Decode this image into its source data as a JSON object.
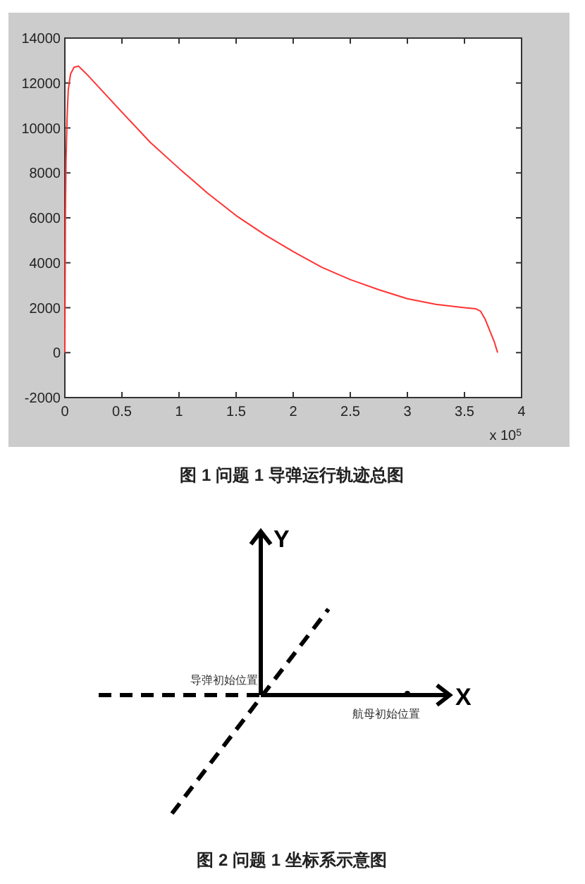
{
  "chart_data": [
    {
      "type": "line",
      "title": "图 1  问题 1 导弹运行轨迹总图",
      "annotations": [
        "x 10$^{5}$"
      ],
      "x": [
        0,
        0.005,
        0.01,
        0.02,
        0.03,
        0.05,
        0.08,
        0.12,
        0.16,
        0.2,
        0.3,
        0.5,
        0.75,
        1,
        1.25,
        1.5,
        1.75,
        2,
        2.25,
        2.5,
        2.75,
        3,
        3.25,
        3.5,
        3.6,
        3.64,
        3.68,
        3.72,
        3.76,
        3.79
      ],
      "series": [
        {
          "color": "#ff3333",
          "values": [
            0,
            6000,
            8500,
            10500,
            11700,
            12400,
            12700,
            12750,
            12550,
            12350,
            11800,
            10700,
            9350,
            8200,
            7100,
            6100,
            5250,
            4500,
            3800,
            3250,
            2800,
            2400,
            2150,
            2000,
            1950,
            1850,
            1500,
            1000,
            500,
            0
          ]
        }
      ],
      "xlim": [
        0,
        4
      ],
      "xticks": [
        0,
        0.5,
        1,
        1.5,
        2,
        2.5,
        3,
        3.5,
        4
      ],
      "ylim": [
        -2000,
        14000
      ],
      "yticks": [
        -2000,
        0,
        2000,
        4000,
        6000,
        8000,
        10000,
        12000,
        14000
      ]
    },
    {
      "type": "other",
      "title": "图 2  问题 1 坐标系示意图",
      "annotations": [
        "Y",
        "X",
        "导弹初始位置",
        "航母初始位置"
      ]
    }
  ]
}
